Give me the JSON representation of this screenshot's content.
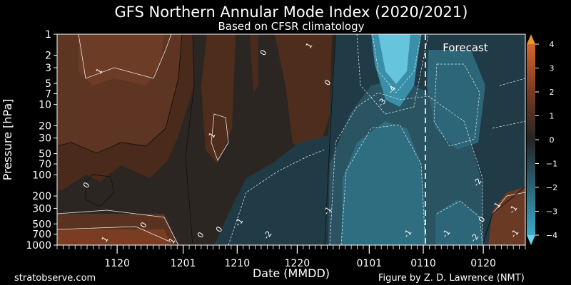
{
  "chart_data": {
    "type": "heatmap",
    "title": "GFS Northern Annular Mode Index (2020/2021)",
    "subtitle": "Based on CFSR climatology",
    "xlabel": "Date (MMDD)",
    "ylabel": "Pressure [hPa]",
    "x_tick_labels": [
      "1120",
      "1201",
      "1210",
      "1220",
      "0101",
      "0110",
      "0120"
    ],
    "y_tick_labels": [
      "1",
      "2",
      "3",
      "5",
      "7",
      "10",
      "20",
      "30",
      "50",
      "70",
      "100",
      "200",
      "300",
      "500",
      "700",
      "1000"
    ],
    "y_scale": "log",
    "ylim": [
      1000,
      1
    ],
    "forecast_label": "Forecast",
    "forecast_start": "0110",
    "colorbar": {
      "ticks": [
        "4",
        "3",
        "2",
        "1",
        "0",
        "−1",
        "−2",
        "−3",
        "−4"
      ],
      "range": [
        -4,
        4
      ],
      "positive_color": "#c8582a",
      "neutral_color": "#2a2a2a",
      "negative_color": "#3ea9c7"
    },
    "contour_labels": [
      "1",
      "0",
      "1",
      "0",
      "1",
      "0",
      "0",
      "-4",
      "-3",
      "0",
      "-1",
      "-2",
      "-1",
      "-1",
      "-1",
      "-2",
      "1",
      "0",
      "-1",
      "0",
      "1",
      "-1",
      "1",
      "-2"
    ]
  },
  "footer": {
    "left": "stratobserve.com",
    "right": "Figure by Z. D. Lawrence (NMT)"
  }
}
